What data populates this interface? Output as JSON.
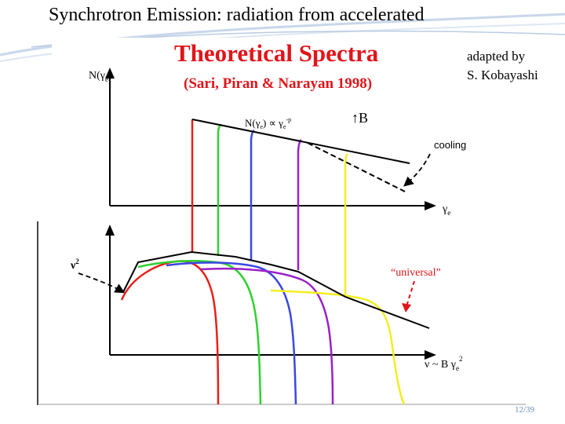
{
  "slide": {
    "title": "Synchrotron Emission: radiation from accelerated",
    "credit_line1": "adapted by",
    "credit_line2": "S. Kobayashi",
    "page_number": "12/39"
  },
  "figure": {
    "heading": "Theoretical Spectra",
    "citation": "(Sari, Piran & Narayan 1998)",
    "top_panel": {
      "y_label": "N(γ",
      "y_label_sub": "e",
      "y_label_end": ")",
      "x_label": "γ",
      "x_label_sub": "e",
      "powerlaw_label": "N(γ",
      "powerlaw_label_sub": "e",
      "powerlaw_label_mid": ") ∝ γ",
      "powerlaw_label_sub2": "e",
      "powerlaw_label_exp": "-p",
      "b_label": "↑B",
      "cooling_label": "cooling"
    },
    "bottom_panel": {
      "y_label": "ν",
      "y_label_exp": "2",
      "x_label": "ν ~ B γ",
      "x_label_sub": "e",
      "x_label_exp": "2",
      "universal_label": "“universal”"
    },
    "curve_colors": [
      "#e8201a",
      "#2fd12f",
      "#3a48e0",
      "#9a20c8",
      "#f2ee22"
    ]
  }
}
